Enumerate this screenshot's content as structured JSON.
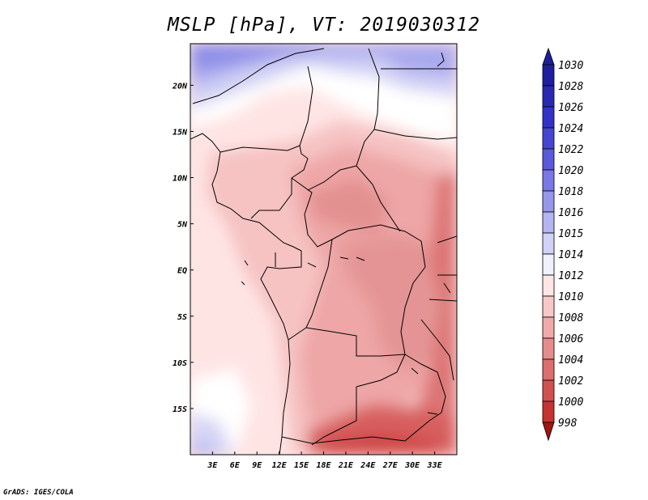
{
  "title": "MSLP [hPa], VT: 2019030312",
  "credit": "GrADS: IGES/COLA",
  "map": {
    "lon_range": [
      0,
      36
    ],
    "lat_range": [
      -20,
      24.5
    ],
    "x_ticks": [
      "3E",
      "6E",
      "9E",
      "12E",
      "15E",
      "18E",
      "21E",
      "24E",
      "27E",
      "30E",
      "33E"
    ],
    "x_tick_values": [
      3,
      6,
      9,
      12,
      15,
      18,
      21,
      24,
      27,
      30,
      33
    ],
    "y_ticks": [
      "20N",
      "15N",
      "10N",
      "5N",
      "EQ",
      "5S",
      "10S",
      "15S"
    ],
    "y_tick_values": [
      20,
      15,
      10,
      5,
      0,
      -5,
      -10,
      -15
    ]
  },
  "colorbar": {
    "labels": [
      "1030",
      "1028",
      "1026",
      "1024",
      "1022",
      "1020",
      "1018",
      "1016",
      "1015",
      "1014",
      "1012",
      "1010",
      "1008",
      "1006",
      "1004",
      "1002",
      "1000",
      "998"
    ],
    "colors": [
      "#1e1ea0",
      "#2828b4",
      "#3232c8",
      "#4646d2",
      "#5a5adc",
      "#7878e6",
      "#9696eb",
      "#b4b4f0",
      "#d2d2f8",
      "#f0f0ff",
      "#ffe6e6",
      "#f8c8c8",
      "#f0aaaa",
      "#e68c8c",
      "#dc6e6e",
      "#d25050",
      "#c83232",
      "#b41e1e"
    ],
    "top_arrow_color": "#1e1e96",
    "bottom_arrow_color": "#a01414"
  }
}
